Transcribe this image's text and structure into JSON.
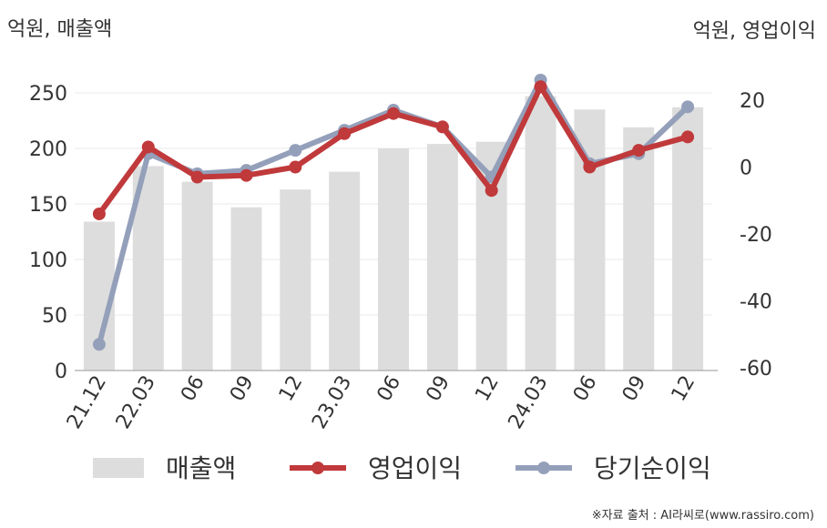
{
  "chart_data": {
    "type": "bar+line",
    "left_axis_unit": "억원, 매출액",
    "right_axis_unit": "억원, 영업이익",
    "categories": [
      "21.12",
      "22.03",
      "06",
      "09",
      "12",
      "23.03",
      "06",
      "09",
      "12",
      "24.03",
      "06",
      "09",
      "12"
    ],
    "left_ylim": [
      0,
      250
    ],
    "left_ticks": [
      0,
      50,
      100,
      150,
      200,
      250
    ],
    "right_ylim": [
      -60,
      20
    ],
    "right_ticks": [
      -60,
      -40,
      -20,
      0,
      20
    ],
    "series": [
      {
        "name": "매출액",
        "type": "bar",
        "axis": "left",
        "color": "#dddddd",
        "values": [
          134,
          184,
          170,
          147,
          163,
          179,
          200,
          204,
          206,
          247,
          235,
          219,
          237
        ]
      },
      {
        "name": "영업이익",
        "type": "line",
        "axis": "right",
        "color": "#c0393b",
        "values": [
          -14,
          6,
          -3,
          -2.5,
          0,
          10,
          16,
          12,
          -7,
          24,
          0,
          5,
          9
        ]
      },
      {
        "name": "당기순이익",
        "type": "line",
        "axis": "right",
        "color": "#94a0ba",
        "values": [
          -53,
          4,
          -2,
          -1,
          5,
          11,
          17,
          12,
          -3,
          26,
          1,
          4,
          18
        ]
      }
    ],
    "grid": true,
    "legend_position": "bottom"
  },
  "source": "※자료 출처 : AI라씨로(www.rassiro.com)"
}
